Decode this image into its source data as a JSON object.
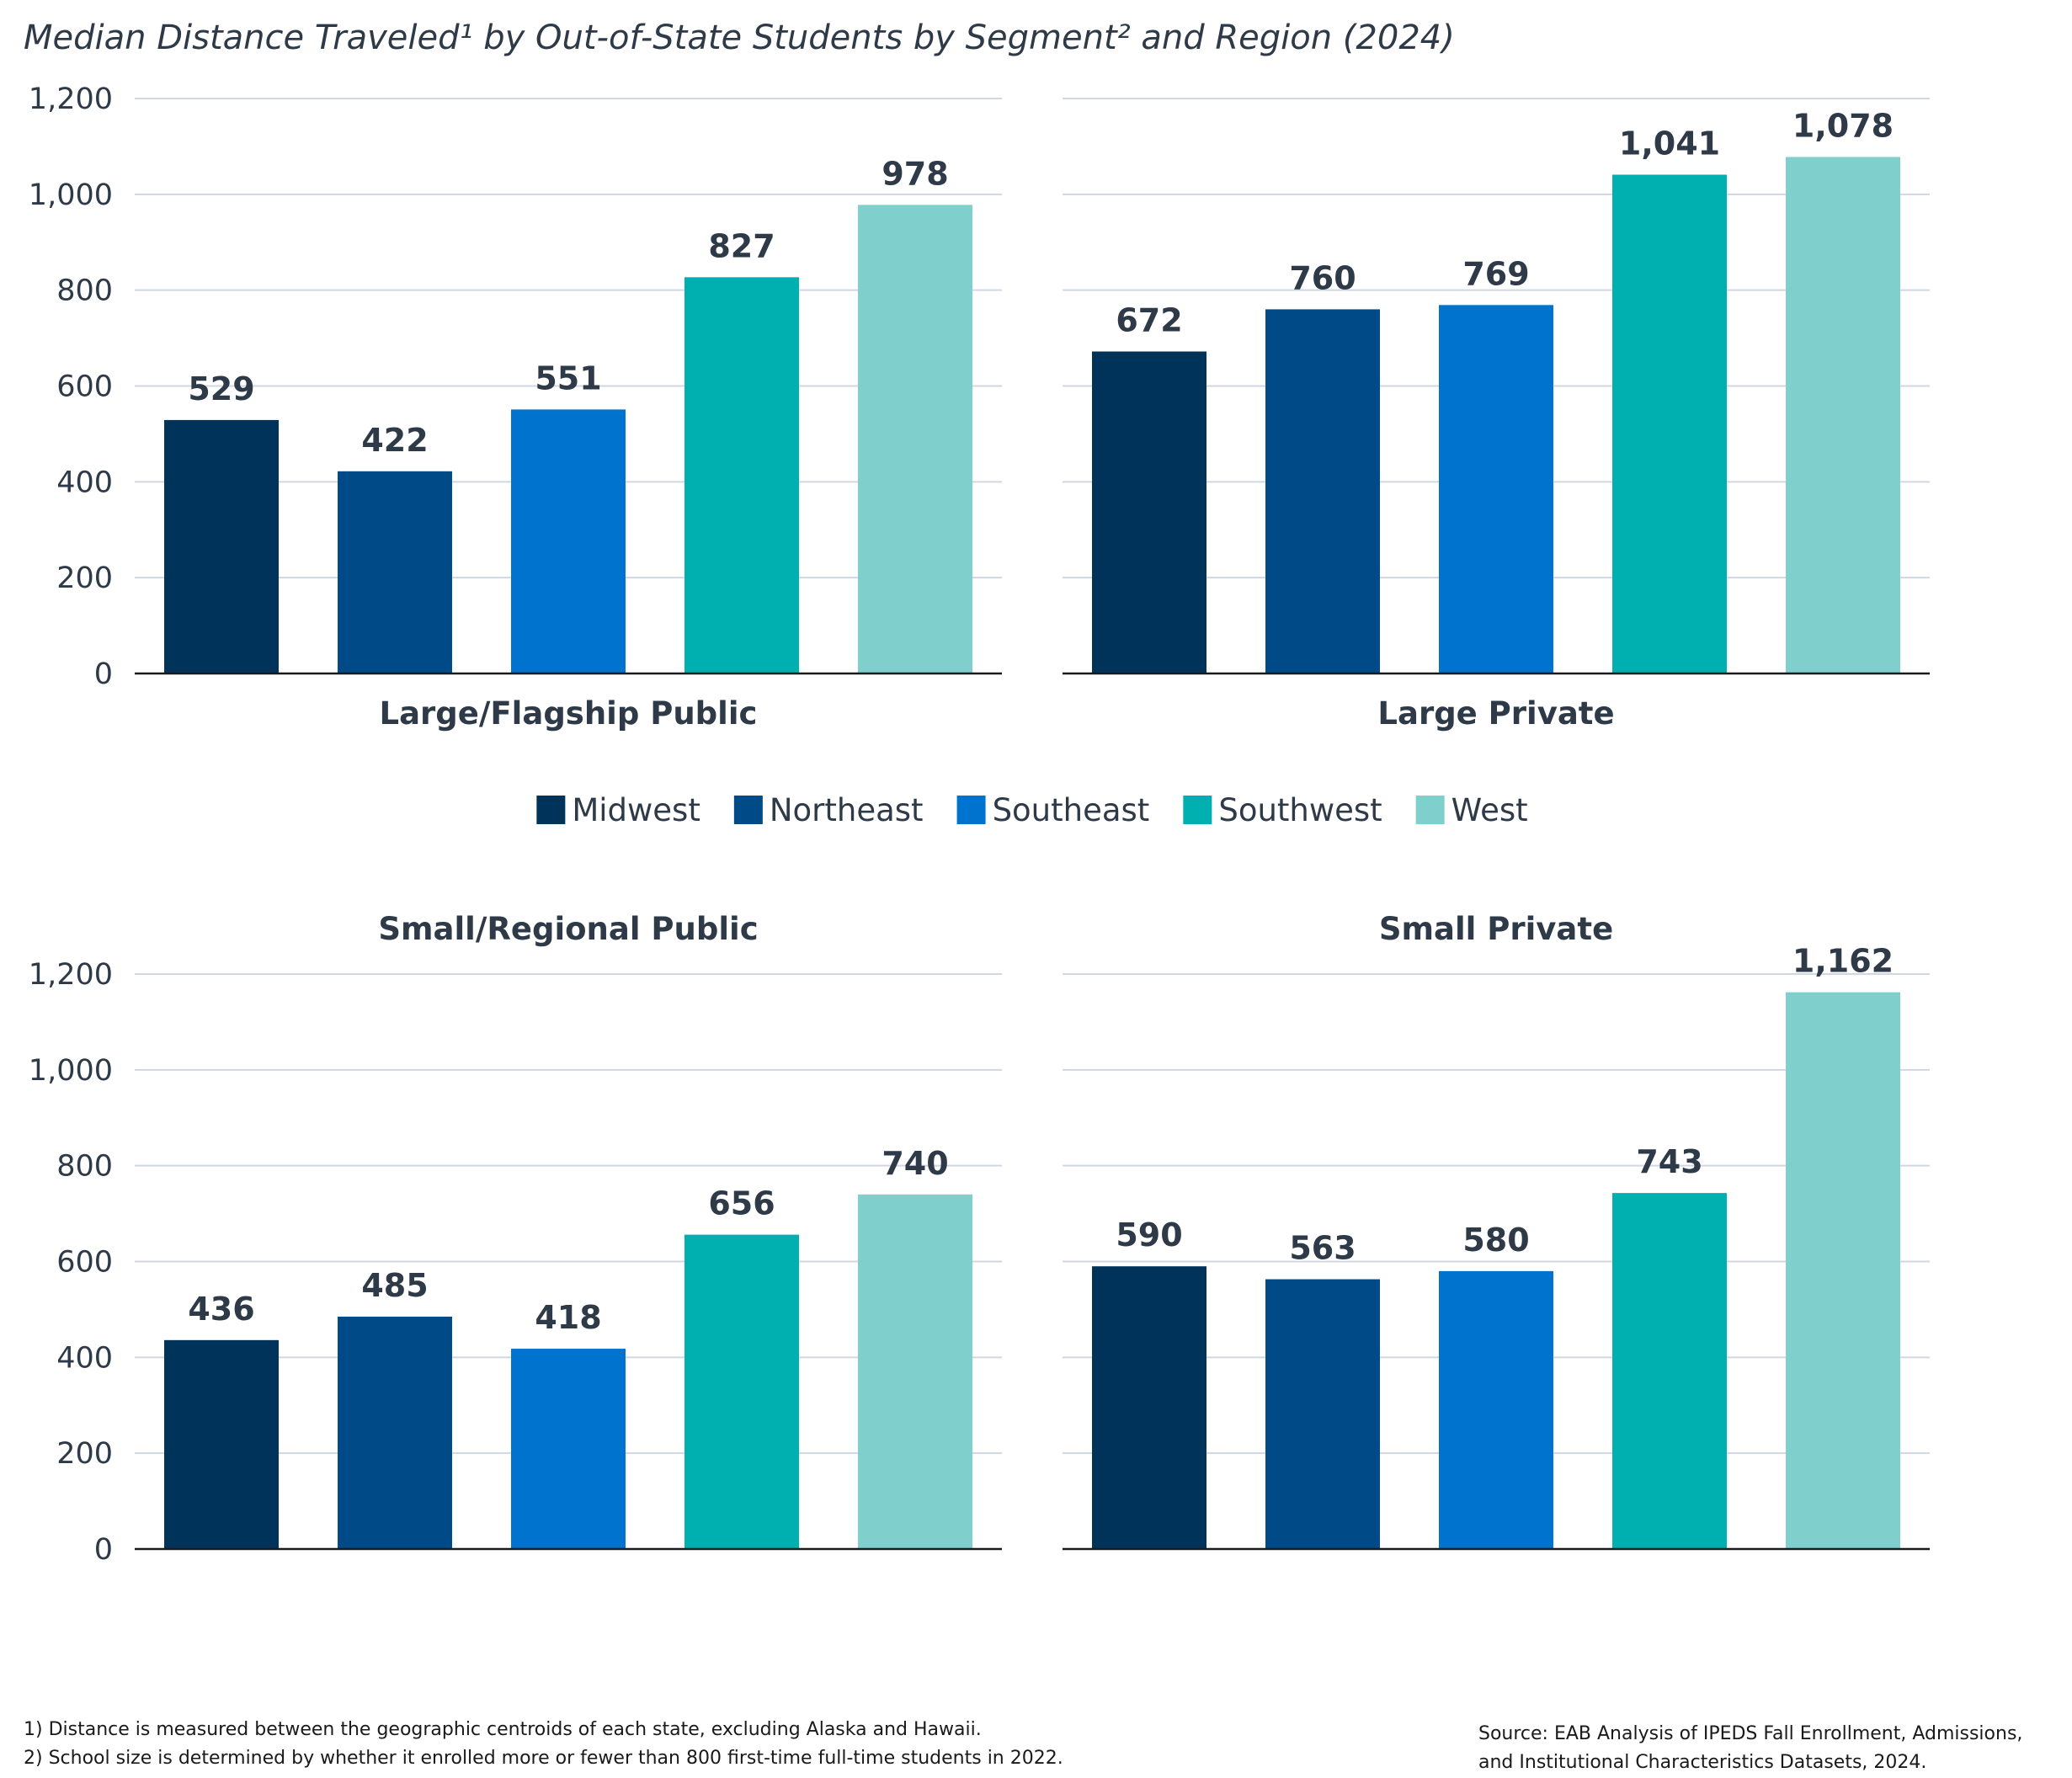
{
  "title": "Median Distance Traveled¹ by Out-of-State Students by Segment² and Region (2024)",
  "legend": {
    "position": "center",
    "items": [
      {
        "label": "Midwest",
        "color": "#00335a"
      },
      {
        "label": "Northeast",
        "color": "#004a87"
      },
      {
        "label": "Southeast",
        "color": "#0073cf"
      },
      {
        "label": "Southwest",
        "color": "#00b0b0"
      },
      {
        "label": "West",
        "color": "#7fcfcc"
      }
    ]
  },
  "chart_data": [
    {
      "type": "bar",
      "title": "Large/Flagship Public",
      "categories": [
        "Midwest",
        "Northeast",
        "Southeast",
        "Southwest",
        "West"
      ],
      "values": [
        529,
        422,
        551,
        827,
        978
      ],
      "value_labels": [
        "529",
        "422",
        "551",
        "827",
        "978"
      ],
      "ylim": [
        0,
        1200
      ],
      "yticks": [
        "0",
        "200",
        "400",
        "600",
        "800",
        "1,000",
        "1,200"
      ],
      "grid": true
    },
    {
      "type": "bar",
      "title": "Large Private",
      "categories": [
        "Midwest",
        "Northeast",
        "Southeast",
        "Southwest",
        "West"
      ],
      "values": [
        672,
        760,
        769,
        1041,
        1078
      ],
      "value_labels": [
        "672",
        "760",
        "769",
        "1,041",
        "1,078"
      ],
      "ylim": [
        0,
        1200
      ],
      "grid": true
    },
    {
      "type": "bar",
      "title": "Small/Regional Public",
      "categories": [
        "Midwest",
        "Northeast",
        "Southeast",
        "Southwest",
        "West"
      ],
      "values": [
        436,
        485,
        418,
        656,
        740
      ],
      "value_labels": [
        "436",
        "485",
        "418",
        "656",
        "740"
      ],
      "ylim": [
        0,
        1200
      ],
      "yticks": [
        "0",
        "200",
        "400",
        "600",
        "800",
        "1,000",
        "1,200"
      ],
      "grid": true
    },
    {
      "type": "bar",
      "title": "Small Private",
      "categories": [
        "Midwest",
        "Northeast",
        "Southeast",
        "Southwest",
        "West"
      ],
      "values": [
        590,
        563,
        580,
        743,
        1162
      ],
      "value_labels": [
        "590",
        "563",
        "580",
        "743",
        "1,162"
      ],
      "ylim": [
        0,
        1200
      ],
      "grid": true
    }
  ],
  "footnotes": [
    "1)  Distance is measured between the geographic centroids of each state, excluding Alaska and Hawaii.",
    "2)  School size is determined by whether it enrolled more or fewer than 800 first-time full-time students in 2022."
  ],
  "source": [
    "Source: EAB Analysis of IPEDS Fall Enrollment, Admissions,",
    "and Institutional Characteristics Datasets, 2024."
  ]
}
